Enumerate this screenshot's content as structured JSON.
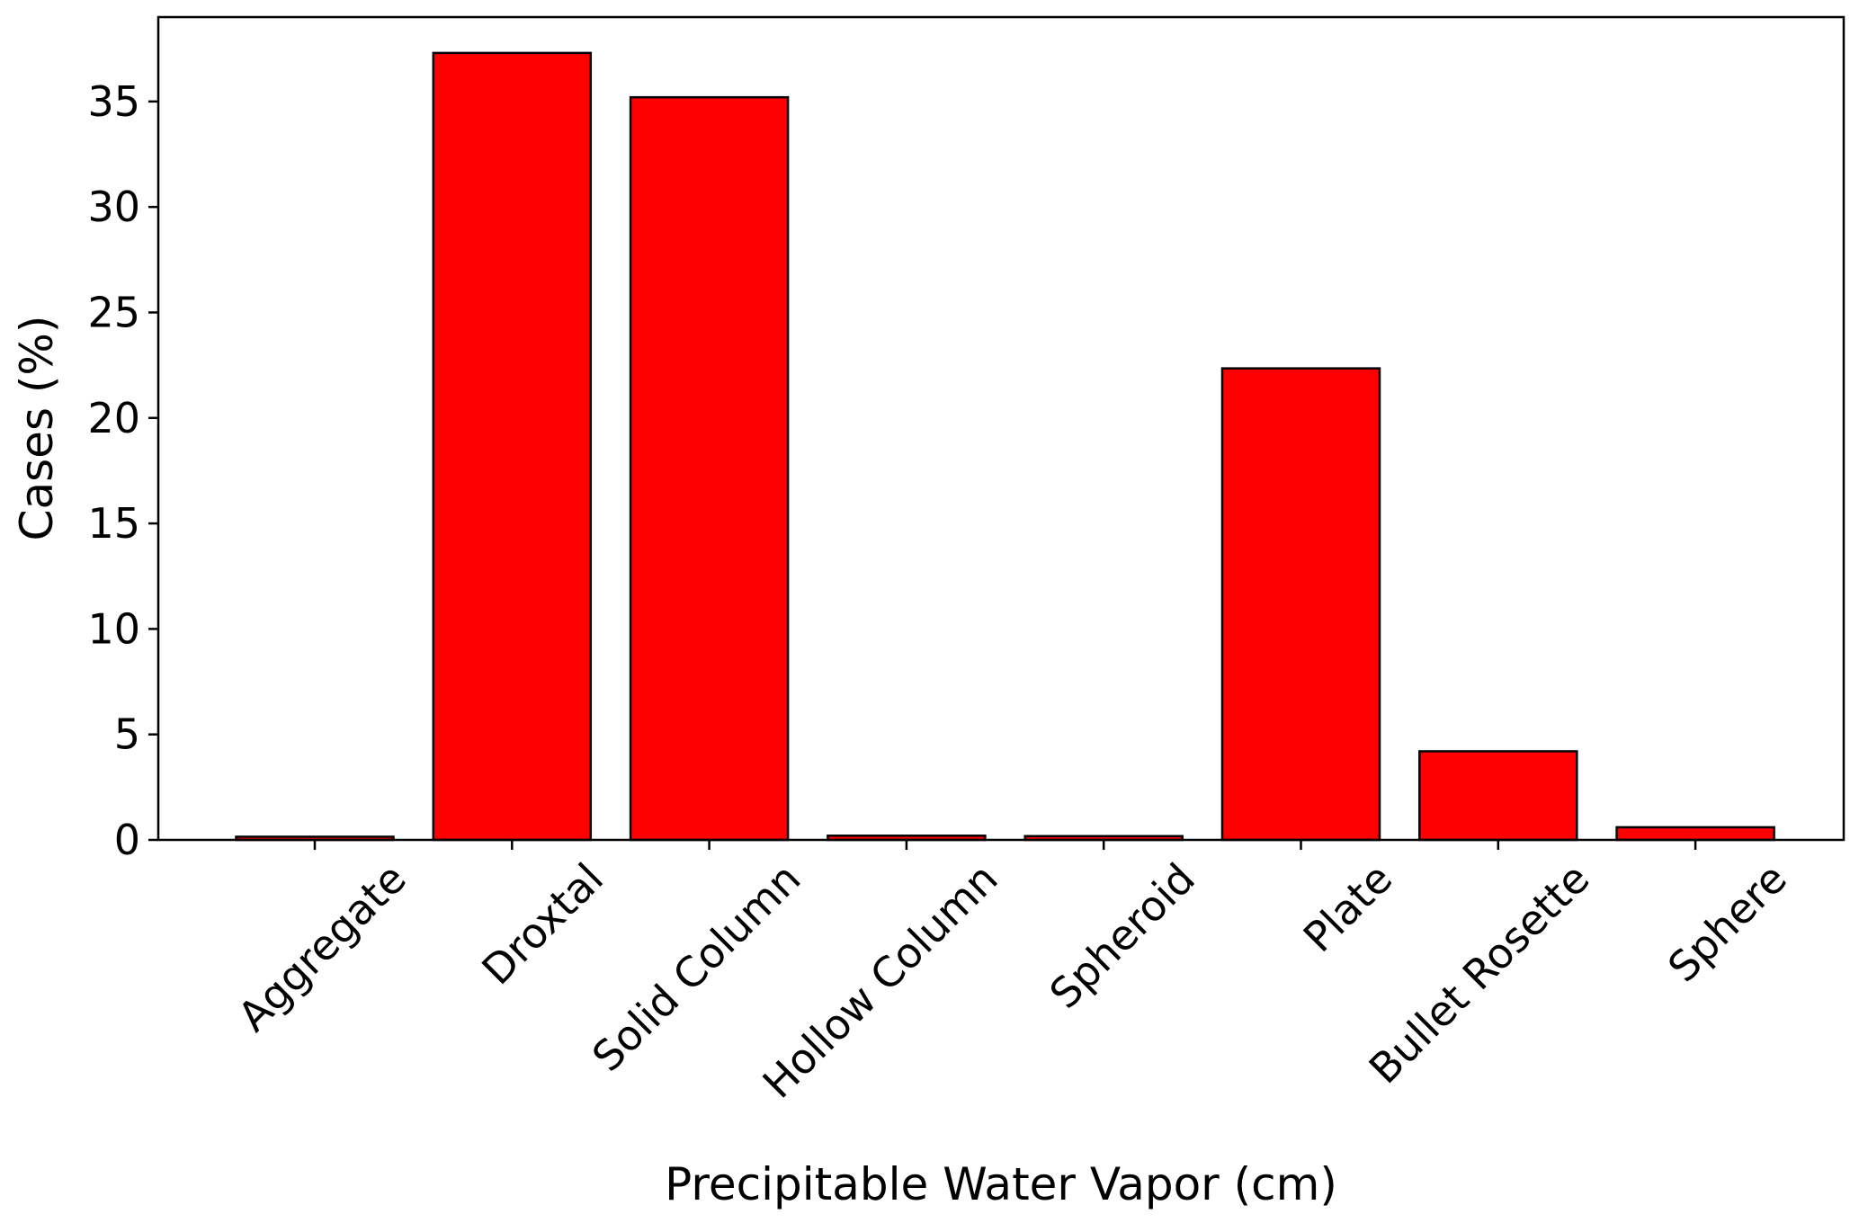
{
  "chart_data": {
    "type": "bar",
    "title": "",
    "xlabel": "Precipitable Water Vapor (cm)",
    "ylabel": "Cases (%)",
    "categories": [
      "Aggregate",
      "Droxtal",
      "Solid Column",
      "Hollow Column",
      "Spheroid",
      "Plate",
      "Bullet Rosette",
      "Sphere"
    ],
    "values": [
      0.15,
      37.3,
      35.2,
      0.2,
      0.18,
      22.35,
      4.2,
      0.6
    ],
    "ylim": [
      0,
      39
    ],
    "yticks": [
      "0",
      "5",
      "10",
      "15",
      "20",
      "25",
      "30",
      "35"
    ],
    "grid": false,
    "legend": "none",
    "colors": {
      "bar_fill": "#ff0000",
      "bar_edge": "#000000",
      "axis": "#000000"
    }
  }
}
